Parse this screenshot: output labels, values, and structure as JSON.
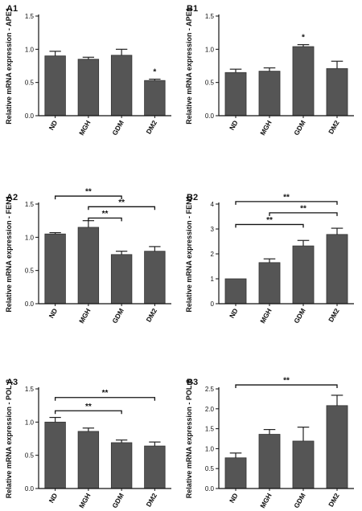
{
  "chart_data": [
    {
      "type": "bar",
      "panel": "A1",
      "categories": [
        "ND",
        "MGH",
        "GDM",
        "DM2"
      ],
      "values": [
        0.9,
        0.85,
        0.91,
        0.53
      ],
      "errors": [
        0.07,
        0.03,
        0.09,
        0.02
      ],
      "ylabel": "Relative mRNA expression - APE1",
      "ylim": [
        0,
        1.5
      ],
      "yticks": [
        "0.0",
        "0.5",
        "1.0",
        "1.5"
      ],
      "significance": [
        {
          "type": "star",
          "category": "DM2",
          "label": "*"
        }
      ]
    },
    {
      "type": "bar",
      "panel": "B1",
      "categories": [
        "ND",
        "MGH",
        "GDM",
        "DM2"
      ],
      "values": [
        0.65,
        0.67,
        1.04,
        0.71
      ],
      "errors": [
        0.05,
        0.05,
        0.03,
        0.11
      ],
      "ylabel": "Relative mRNA expression - APE1",
      "ylim": [
        0,
        1.5
      ],
      "yticks": [
        "0.0",
        "0.5",
        "1.0",
        "1.5"
      ],
      "significance": [
        {
          "type": "star",
          "category": "GDM",
          "label": "*"
        }
      ]
    },
    {
      "type": "bar",
      "panel": "A2",
      "categories": [
        "ND",
        "MGH",
        "GDM",
        "DM2"
      ],
      "values": [
        1.05,
        1.15,
        0.74,
        0.79
      ],
      "errors": [
        0.02,
        0.1,
        0.05,
        0.07
      ],
      "ylabel": "Relative mRNA expression - FEN1",
      "ylim": [
        0,
        1.5
      ],
      "yticks": [
        "0.0",
        "0.5",
        "1.0",
        "1.5"
      ],
      "significance": [
        {
          "type": "bracket",
          "from": "ND",
          "to": "GDM",
          "level": 1.62,
          "label": "**"
        },
        {
          "type": "bracket",
          "from": "MGH",
          "to": "DM2",
          "level": 1.46,
          "label": "**"
        },
        {
          "type": "bracket",
          "from": "MGH",
          "to": "GDM",
          "level": 1.29,
          "label": "**"
        }
      ]
    },
    {
      "type": "bar",
      "panel": "B2",
      "categories": [
        "ND",
        "MGH",
        "GDM",
        "DM2"
      ],
      "values": [
        1.0,
        1.65,
        2.32,
        2.78
      ],
      "errors": [
        0.0,
        0.15,
        0.22,
        0.25
      ],
      "ylabel": "Relative mRNA expression - FEN1",
      "ylim": [
        0,
        4
      ],
      "yticks": [
        "0",
        "1",
        "2",
        "3",
        "4"
      ],
      "significance": [
        {
          "type": "bracket",
          "from": "ND",
          "to": "DM2",
          "level": 4.1,
          "label": "**"
        },
        {
          "type": "bracket",
          "from": "MGH",
          "to": "DM2",
          "level": 3.65,
          "label": "**"
        },
        {
          "type": "bracket",
          "from": "ND",
          "to": "GDM",
          "level": 3.18,
          "label": "**"
        }
      ]
    },
    {
      "type": "bar",
      "panel": "A3",
      "categories": [
        "ND",
        "MGH",
        "GDM",
        "DM2"
      ],
      "values": [
        1.0,
        0.86,
        0.69,
        0.64
      ],
      "errors": [
        0.07,
        0.05,
        0.04,
        0.06
      ],
      "ylabel": "Relative mRNA expression - POL β",
      "ylim": [
        0,
        1.5
      ],
      "yticks": [
        "0.0",
        "0.5",
        "1.0",
        "1.5"
      ],
      "significance": [
        {
          "type": "bracket",
          "from": "ND",
          "to": "DM2",
          "level": 1.37,
          "label": "**"
        },
        {
          "type": "bracket",
          "from": "ND",
          "to": "GDM",
          "level": 1.17,
          "label": "**"
        }
      ]
    },
    {
      "type": "bar",
      "panel": "B3",
      "categories": [
        "ND",
        "MGH",
        "GDM",
        "DM2"
      ],
      "values": [
        0.77,
        1.36,
        1.19,
        2.08
      ],
      "errors": [
        0.12,
        0.12,
        0.35,
        0.26
      ],
      "ylabel": "Relative mRNA expression - POL β",
      "ylim": [
        0,
        2.5
      ],
      "yticks": [
        "0.0",
        "0.5",
        "1.0",
        "1.5",
        "2.0",
        "2.5"
      ],
      "significance": [
        {
          "type": "bracket",
          "from": "ND",
          "to": "DM2",
          "level": 2.6,
          "label": "**"
        }
      ]
    }
  ],
  "colors": {
    "bar_fill": "#555555",
    "bar_stroke": "#333333",
    "axis": "#111111"
  }
}
